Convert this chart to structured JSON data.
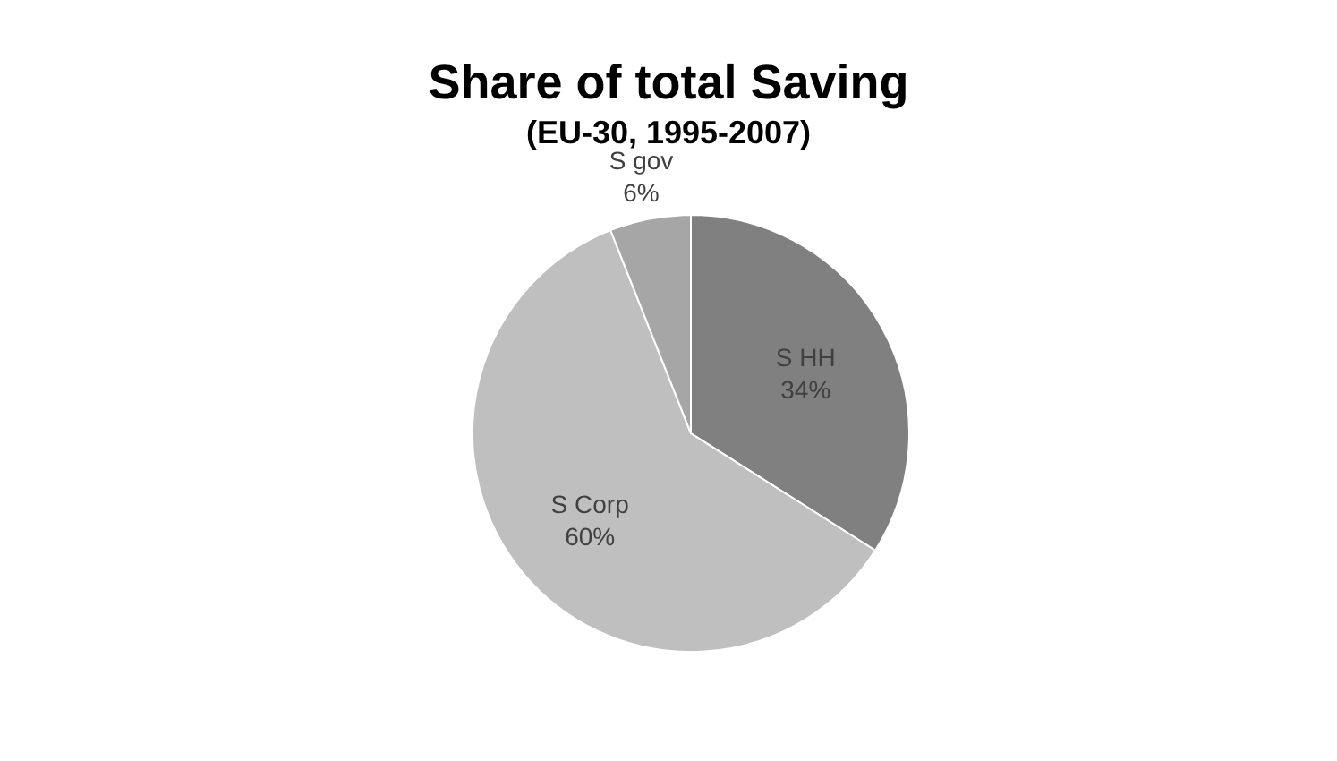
{
  "chart_data": {
    "type": "pie",
    "title": "Share of total Saving",
    "subtitle": "(EU-30, 1995-2007)",
    "categories": [
      "S HH",
      "S Corp",
      "S gov"
    ],
    "values": [
      34,
      60,
      6
    ],
    "value_labels": [
      "34%",
      "60%",
      "6%"
    ],
    "colors": [
      "#808080",
      "#bfbfbf",
      "#a6a6a6"
    ],
    "legend": false
  }
}
